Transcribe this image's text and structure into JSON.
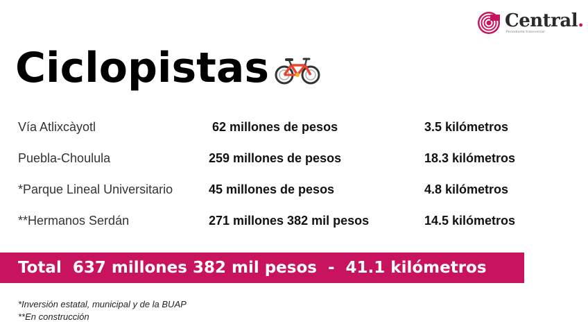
{
  "logo": {
    "name": "Central",
    "tagline": "Periodismo transversal"
  },
  "title": "Ciclopistas",
  "icons": {
    "bike": "bicycle-icon",
    "logo": "central-logo-icon"
  },
  "colors": {
    "accent": "#c8135f",
    "text": "#111111"
  },
  "rows": [
    {
      "name": "Vía Atlixcàyotl",
      "amount": " 62 millones de pesos",
      "km": "3.5 kilómetros"
    },
    {
      "name": "Puebla-Choulula",
      "amount": "259 millones de pesos",
      "km": "18.3 kilómetros"
    },
    {
      "name": "*Parque Lineal Universitario",
      "amount": "45 millones de pesos",
      "km": "4.8 kilómetros"
    },
    {
      "name": "**Hermanos Serdán",
      "amount": "271 millones 382 mil pesos",
      "km": "14.5 kilómetros"
    }
  ],
  "total": "Total  637 millones 382 mil pesos  -  41.1 kilómetros",
  "footnotes": [
    "*Inversión estatal, municipal y de la BUAP",
    "**En construcción"
  ]
}
